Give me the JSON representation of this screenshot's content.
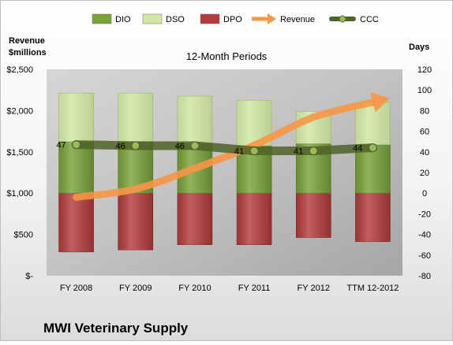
{
  "chart_data": {
    "type": "bar",
    "title": "12-Month Periods",
    "company": "MWI Veterinary Supply",
    "categories": [
      "FY 2008",
      "FY 2009",
      "FY 2010",
      "FY 2011",
      "FY 2012",
      "TTM 12-2012"
    ],
    "y_left": {
      "label_line1": "Revenue",
      "label_line2": "$millions",
      "range": [
        0,
        2500
      ],
      "ticks": [
        0,
        500,
        1000,
        1500,
        2000,
        2500
      ],
      "tick_labels": [
        "$-",
        "$500",
        "$1,000",
        "$1,500",
        "$2,000",
        "$2,500"
      ]
    },
    "y_right": {
      "label": "Days",
      "range": [
        -80,
        120
      ],
      "ticks": [
        -80,
        -60,
        -40,
        -20,
        0,
        20,
        40,
        60,
        80,
        100,
        120
      ],
      "tick_labels": [
        "-80",
        "-60",
        "-40",
        "-20",
        "0",
        "20",
        "40",
        "60",
        "80",
        "100",
        "120"
      ]
    },
    "legend": [
      "DIO",
      "DSO",
      "DPO",
      "Revenue",
      "CCC"
    ],
    "legend_position": "top",
    "grid": false,
    "series": [
      {
        "name": "DIO",
        "axis": "right",
        "kind": "stacked-bar",
        "values": [
          50,
          50,
          48,
          46,
          48,
          47
        ],
        "color": "#7aa33a"
      },
      {
        "name": "DSO",
        "axis": "right",
        "kind": "stacked-bar",
        "values": [
          47,
          47,
          46,
          44,
          31,
          41
        ],
        "color": "#d3e8a8"
      },
      {
        "name": "DPO",
        "axis": "right",
        "kind": "stacked-bar",
        "values": [
          -57,
          -55,
          -50,
          -50,
          -43,
          -47
        ],
        "color": "#b43c3c"
      },
      {
        "name": "Revenue",
        "axis": "left",
        "kind": "line-arrow",
        "values": [
          950,
          1050,
          1300,
          1580,
          1920,
          2100
        ],
        "color": "#f79646"
      },
      {
        "name": "CCC",
        "axis": "right",
        "kind": "line-markers",
        "values": [
          47,
          46,
          46,
          41,
          41,
          44
        ],
        "color": "#4f6228"
      }
    ],
    "data_labels": {
      "series": "CCC",
      "values": [
        "47",
        "46",
        "46",
        "41",
        "41",
        "44"
      ]
    }
  }
}
